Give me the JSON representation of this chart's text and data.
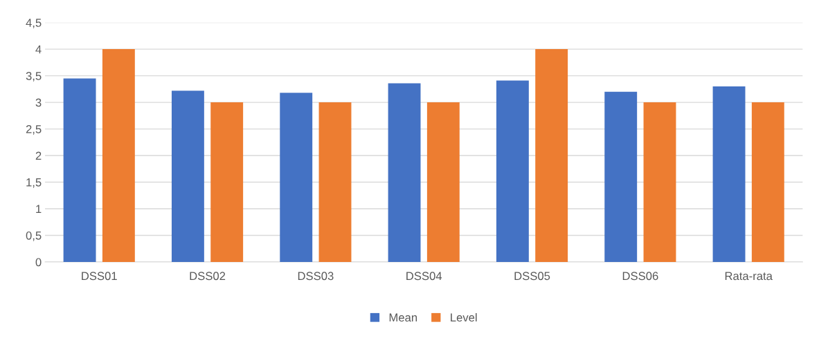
{
  "chart_data": {
    "type": "bar",
    "categories": [
      "DSS01",
      "DSS02",
      "DSS03",
      "DSS04",
      "DSS05",
      "DSS06",
      "Rata-rata"
    ],
    "series": [
      {
        "name": "Mean",
        "color": "#4472c4",
        "values": [
          3.45,
          3.22,
          3.18,
          3.36,
          3.41,
          3.2,
          3.3
        ]
      },
      {
        "name": "Level",
        "color": "#ed7d31",
        "values": [
          4,
          3,
          3,
          3,
          4,
          3,
          3
        ]
      }
    ],
    "ylim": [
      0,
      4.5
    ],
    "yticks": [
      0,
      {
        "value": 0.5,
        "label": "0,5"
      },
      1,
      {
        "value": 1.5,
        "label": "1,5"
      },
      2,
      {
        "value": 2.5,
        "label": "2,5"
      },
      3,
      {
        "value": 3.5,
        "label": "3,5"
      },
      4,
      {
        "value": 4.5,
        "label": "4,5"
      }
    ],
    "grid": "y",
    "legend": "bottom"
  }
}
